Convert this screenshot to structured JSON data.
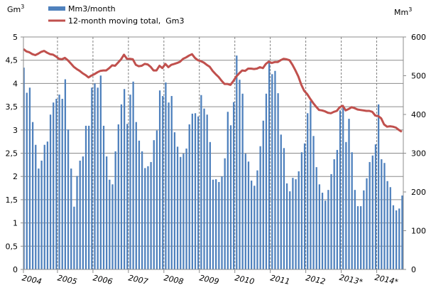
{
  "chart_data": {
    "type": "bar+line",
    "left_unit": "Gm",
    "left_unit_sup": "3",
    "right_unit": "Mm",
    "right_unit_sup": "3",
    "left_ylim": [
      0,
      5
    ],
    "right_ylim": [
      0,
      600
    ],
    "left_ticks": [
      "0",
      "0,5",
      "1",
      "1,5",
      "2",
      "2,5",
      "3",
      "3,5",
      "4",
      "4,5",
      "5"
    ],
    "right_ticks": [
      "0",
      "100",
      "200",
      "300",
      "400",
      "500",
      "600"
    ],
    "year_labels": [
      "2004",
      "2005",
      "2006",
      "2007",
      "2008",
      "2009",
      "2010",
      "2011",
      "2012",
      "2013*",
      "2014*"
    ],
    "grid": true,
    "legend_position": "top-left",
    "colors": {
      "bars": "#4f81bd",
      "line": "#c0504d"
    },
    "series": [
      {
        "name": "Mm3/month",
        "type": "bar",
        "axis": "left (Gm3 scale)",
        "values": [
          4.34,
          3.8,
          3.91,
          3.17,
          2.68,
          2.17,
          2.34,
          2.68,
          2.75,
          3.33,
          3.59,
          3.67,
          3.76,
          3.67,
          4.09,
          3.01,
          2.17,
          1.35,
          2.01,
          2.34,
          2.43,
          3.09,
          3.09,
          3.91,
          4.0,
          3.91,
          4.17,
          3.09,
          2.43,
          1.93,
          1.83,
          2.54,
          3.12,
          3.55,
          3.88,
          3.13,
          3.76,
          4.04,
          3.17,
          2.77,
          2.54,
          2.18,
          2.22,
          2.31,
          2.78,
          2.99,
          3.85,
          3.73,
          4.02,
          3.59,
          3.73,
          2.95,
          2.64,
          2.42,
          2.49,
          2.6,
          3.12,
          3.35,
          3.36,
          3.29,
          3.75,
          3.46,
          3.33,
          2.74,
          1.93,
          1.94,
          1.88,
          2.0,
          2.39,
          3.39,
          3.1,
          3.6,
          4.6,
          4.08,
          3.78,
          2.49,
          2.32,
          1.91,
          1.8,
          2.13,
          2.65,
          3.2,
          3.78,
          4.49,
          4.2,
          4.27,
          3.79,
          2.9,
          2.61,
          1.85,
          1.68,
          1.97,
          1.94,
          2.11,
          2.52,
          2.71,
          3.36,
          3.62,
          2.87,
          2.2,
          1.83,
          1.65,
          1.48,
          1.71,
          2.05,
          2.37,
          2.57,
          3.42,
          3.53,
          2.74,
          3.24,
          2.52,
          1.71,
          1.36,
          1.36,
          1.7,
          1.96,
          2.31,
          2.45,
          2.69,
          3.55,
          2.37,
          2.29,
          1.9,
          1.77,
          1.38,
          1.27,
          1.31,
          1.59
        ]
      },
      {
        "name": "12-month moving total,  Gm3",
        "type": "line",
        "axis": "left",
        "values": [
          4.74,
          4.69,
          4.67,
          4.63,
          4.61,
          4.64,
          4.68,
          4.7,
          4.66,
          4.63,
          4.62,
          4.58,
          4.53,
          4.52,
          4.55,
          4.5,
          4.43,
          4.36,
          4.31,
          4.27,
          4.22,
          4.18,
          4.13,
          4.17,
          4.2,
          4.24,
          4.27,
          4.28,
          4.28,
          4.33,
          4.39,
          4.38,
          4.45,
          4.52,
          4.62,
          4.53,
          4.53,
          4.52,
          4.4,
          4.37,
          4.38,
          4.42,
          4.41,
          4.36,
          4.28,
          4.28,
          4.38,
          4.33,
          4.42,
          4.35,
          4.4,
          4.42,
          4.44,
          4.47,
          4.53,
          4.56,
          4.6,
          4.63,
          4.55,
          4.5,
          4.48,
          4.45,
          4.4,
          4.36,
          4.27,
          4.2,
          4.14,
          4.06,
          3.99,
          3.99,
          3.97,
          4.05,
          4.15,
          4.22,
          4.28,
          4.27,
          4.32,
          4.32,
          4.31,
          4.32,
          4.35,
          4.33,
          4.42,
          4.47,
          4.44,
          4.46,
          4.46,
          4.5,
          4.53,
          4.52,
          4.5,
          4.4,
          4.28,
          4.15,
          3.97,
          3.84,
          3.77,
          3.67,
          3.58,
          3.5,
          3.43,
          3.42,
          3.4,
          3.37,
          3.36,
          3.39,
          3.41,
          3.49,
          3.52,
          3.42,
          3.45,
          3.49,
          3.47,
          3.44,
          3.43,
          3.42,
          3.41,
          3.41,
          3.39,
          3.31,
          3.3,
          3.25,
          3.12,
          3.07,
          3.08,
          3.07,
          3.05,
          3.0,
          2.96
        ]
      }
    ]
  }
}
